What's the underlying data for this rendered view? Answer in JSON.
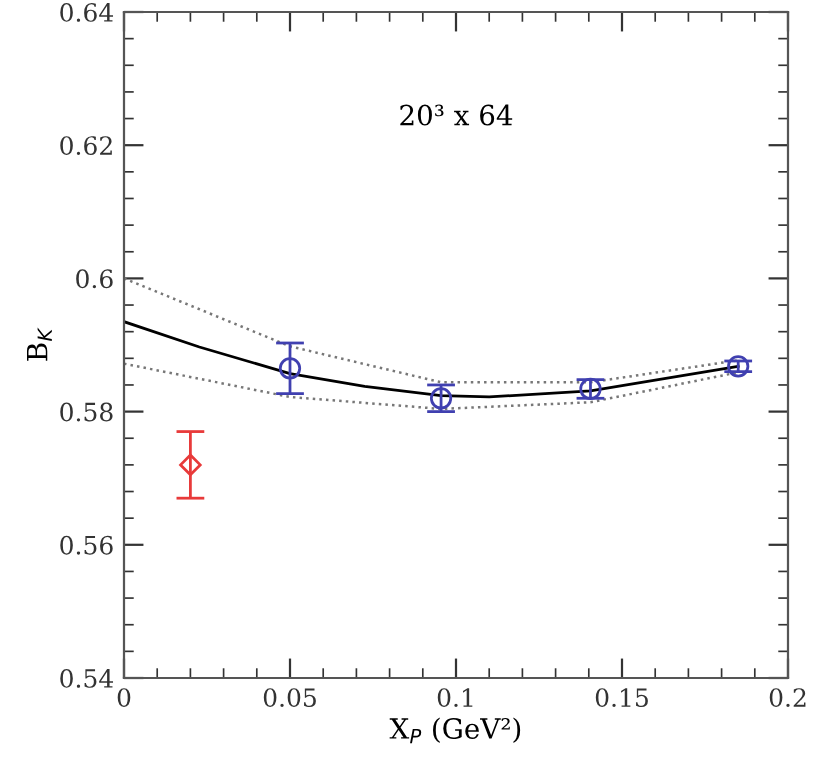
{
  "chart_data": {
    "type": "scatter",
    "xlabel": "X$_{P}$ (GeV²)",
    "ylabel": "B$_{K}$",
    "annotations": [
      "20³ x 64"
    ],
    "xlim": [
      0,
      0.2
    ],
    "ylim": [
      0.54,
      0.64
    ],
    "xticks": [
      0,
      0.05,
      0.1,
      0.15,
      0.2
    ],
    "yticks": [
      0.54,
      0.56,
      0.58,
      0.6,
      0.62,
      0.64
    ],
    "grid": false,
    "legend": false,
    "series": [
      {
        "type": "line",
        "color": "#000000",
        "line_style": "solid",
        "marker": "none",
        "x": [
          0,
          0.0227,
          0.05,
          0.0725,
          0.0955,
          0.11,
          0.1405,
          0.185
        ],
        "values": [
          0.5935,
          0.5897,
          0.5857,
          0.5838,
          0.5824,
          0.5822,
          0.5831,
          0.5868
        ]
      },
      {
        "type": "line",
        "color": "#777777",
        "line_style": "dotted",
        "marker": "none",
        "x": [
          0,
          0.05,
          0.0955,
          0.1405,
          0.185
        ],
        "values": [
          0.6,
          0.5898,
          0.5844,
          0.5844,
          0.5877
        ]
      },
      {
        "type": "line",
        "color": "#777777",
        "line_style": "dotted",
        "marker": "none",
        "x": [
          0,
          0.05,
          0.0955,
          0.1405,
          0.185
        ],
        "values": [
          0.5872,
          0.5822,
          0.5804,
          0.5814,
          0.5859
        ]
      },
      {
        "color": "#4040b0",
        "marker": "circle",
        "x": [
          0.05,
          0.0955,
          0.1405,
          0.185
        ],
        "values": [
          0.5865,
          0.582,
          0.5834,
          0.5868
        ],
        "errors": [
          0.0038,
          0.002,
          0.0014,
          0.0008
        ]
      },
      {
        "color": "#e83a3a",
        "marker": "diamond",
        "x": [
          0.02
        ],
        "values": [
          0.572
        ],
        "errors": [
          0.005
        ]
      }
    ]
  }
}
